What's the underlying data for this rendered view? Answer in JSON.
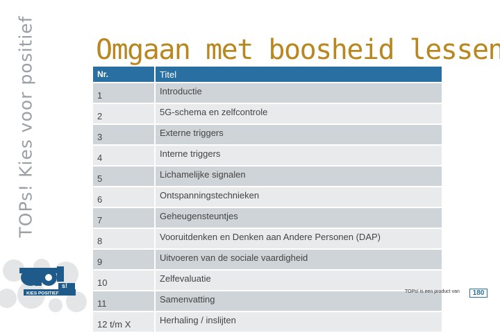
{
  "sidebar": {
    "vertical_text": "TOPs! Kies voor positief"
  },
  "logo": {
    "main": "TOP!",
    "sub": "s!",
    "tagline": "KIES POSITIEF"
  },
  "slide": {
    "title": "Omgaan met boosheid lessen"
  },
  "table": {
    "headers": [
      "Nr.",
      "Titel"
    ],
    "rows": [
      {
        "nr": "1",
        "titel": "Introductie"
      },
      {
        "nr": "2",
        "titel": "5G-schema en zelfcontrole"
      },
      {
        "nr": "3",
        "titel": "Externe triggers"
      },
      {
        "nr": "4",
        "titel": "Interne triggers"
      },
      {
        "nr": "5",
        "titel": "Lichamelijke signalen"
      },
      {
        "nr": "6",
        "titel": "Ontspanningstechnieken"
      },
      {
        "nr": "7",
        "titel": "Geheugensteuntjes"
      },
      {
        "nr": "8",
        "titel": "Vooruitdenken en Denken aan Andere Personen (DAP)"
      },
      {
        "nr": "9",
        "titel": "Uitvoeren van de sociale vaardigheid"
      },
      {
        "nr": "10",
        "titel": "Zelfevaluatie"
      },
      {
        "nr": "11",
        "titel": "Samenvatting"
      },
      {
        "nr": "12 t/m X",
        "titel": "Herhaling / inslijten"
      }
    ]
  },
  "footer": {
    "text": "TOPs! is een product van",
    "page": "180"
  },
  "colors": {
    "header_bg": "#2a6fa1",
    "title": "#b9871f",
    "row_odd": "#cfd4d9",
    "row_even": "#e8eaec"
  }
}
